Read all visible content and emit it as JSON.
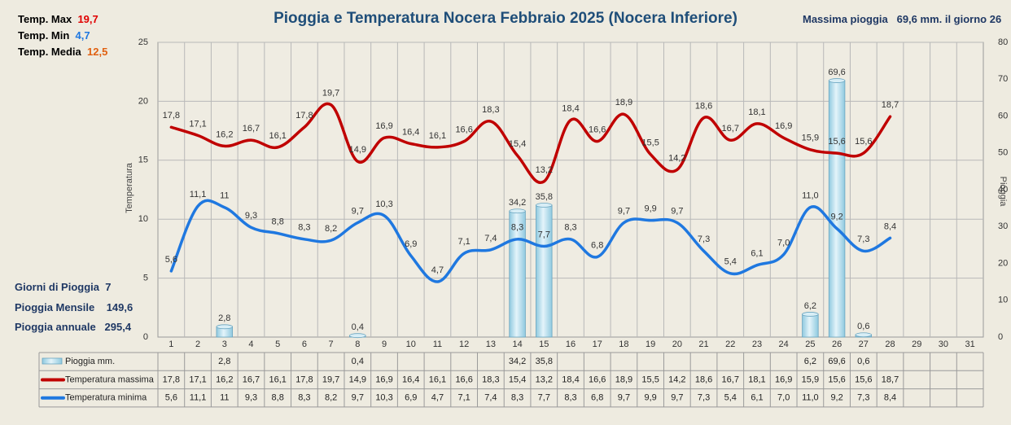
{
  "header": {
    "title": "Pioggia e Temperatura Nocera Febbraio 2025 (Nocera Inferiore)",
    "max_rain_label": "Massima pioggia",
    "max_rain_value": "69,6 mm. il giorno 26"
  },
  "stats_top": [
    {
      "label": "Temp. Max",
      "value": "19,7",
      "color": "#e00000"
    },
    {
      "label": "Temp.  Min",
      "value": "4,7",
      "color": "#1f78e0"
    },
    {
      "label": "Temp. Media",
      "value": "12,5",
      "color": "#e06010"
    }
  ],
  "stats_bottom": [
    {
      "label": "Giorni di Pioggia",
      "value": "7"
    },
    {
      "label": "Pioggia Mensile",
      "value": "149,6"
    },
    {
      "label": "Pioggia annuale",
      "value": "295,4"
    }
  ],
  "chart_data": {
    "type": "bar+line",
    "title": "Pioggia e Temperatura Nocera Febbraio 2025 (Nocera Inferiore)",
    "ylabel_left": "Temperatura",
    "ylabel_right": "Pioggia",
    "ylim_left": [
      0,
      25
    ],
    "ylim_right": [
      0,
      80
    ],
    "yticks_left": [
      "0",
      "5",
      "10",
      "15",
      "20",
      "25"
    ],
    "yticks_right": [
      "0",
      "10",
      "20",
      "30",
      "40",
      "50",
      "60",
      "70",
      "80"
    ],
    "categories": [
      "1",
      "2",
      "3",
      "4",
      "5",
      "6",
      "7",
      "8",
      "9",
      "10",
      "11",
      "12",
      "13",
      "14",
      "15",
      "16",
      "17",
      "18",
      "19",
      "20",
      "21",
      "22",
      "23",
      "24",
      "25",
      "26",
      "27",
      "28",
      "29",
      "30",
      "31"
    ],
    "series": [
      {
        "name": "Pioggia mm.",
        "kind": "bar",
        "axis": "right",
        "color": "#b9e1ef",
        "values": [
          null,
          null,
          2.8,
          null,
          null,
          null,
          null,
          0.4,
          null,
          null,
          null,
          null,
          null,
          34.2,
          35.8,
          null,
          null,
          null,
          null,
          null,
          null,
          null,
          null,
          null,
          6.2,
          69.6,
          0.6,
          null,
          null,
          null,
          null
        ],
        "labels": [
          "",
          "",
          "2,8",
          "",
          "",
          "",
          "",
          "0,4",
          "",
          "",
          "",
          "",
          "",
          "34,2",
          "35,8",
          "",
          "",
          "",
          "",
          "",
          "",
          "",
          "",
          "",
          "6,2",
          "69,6",
          "0,6",
          "",
          "",
          "",
          ""
        ]
      },
      {
        "name": "Temperatura massima",
        "kind": "line",
        "axis": "left",
        "color": "#c00000",
        "values": [
          17.8,
          17.1,
          16.2,
          16.7,
          16.1,
          17.8,
          19.7,
          14.9,
          16.9,
          16.4,
          16.1,
          16.6,
          18.3,
          15.4,
          13.2,
          18.4,
          16.6,
          18.9,
          15.5,
          14.2,
          18.6,
          16.7,
          18.1,
          16.9,
          15.9,
          15.6,
          15.6,
          18.7,
          null,
          null,
          null
        ],
        "labels": [
          "17,8",
          "17,1",
          "16,2",
          "16,7",
          "16,1",
          "17,8",
          "19,7",
          "14,9",
          "16,9",
          "16,4",
          "16,1",
          "16,6",
          "18,3",
          "15,4",
          "13,2",
          "18,4",
          "16,6",
          "18,9",
          "15,5",
          "14,2",
          "18,6",
          "16,7",
          "18,1",
          "16,9",
          "15,9",
          "15,6",
          "15,6",
          "18,7",
          "",
          "",
          ""
        ]
      },
      {
        "name": "Temperatura minima",
        "kind": "line",
        "axis": "left",
        "color": "#1f78e0",
        "values": [
          5.6,
          11.1,
          11,
          9.3,
          8.8,
          8.3,
          8.2,
          9.7,
          10.3,
          6.9,
          4.7,
          7.1,
          7.4,
          8.3,
          7.7,
          8.3,
          6.8,
          9.7,
          9.9,
          9.7,
          7.3,
          5.4,
          6.1,
          7.0,
          11.0,
          9.2,
          7.3,
          8.4,
          null,
          null,
          null
        ],
        "labels": [
          "5,6",
          "11,1",
          "11",
          "9,3",
          "8,8",
          "8,3",
          "8,2",
          "9,7",
          "10,3",
          "6,9",
          "4,7",
          "7,1",
          "7,4",
          "8,3",
          "7,7",
          "8,3",
          "6,8",
          "9,7",
          "9,9",
          "9,7",
          "7,3",
          "5,4",
          "6,1",
          "7,0",
          "11,0",
          "9,2",
          "7,3",
          "8,4",
          "",
          "",
          ""
        ]
      }
    ],
    "grid": true,
    "legend": "table-below"
  }
}
